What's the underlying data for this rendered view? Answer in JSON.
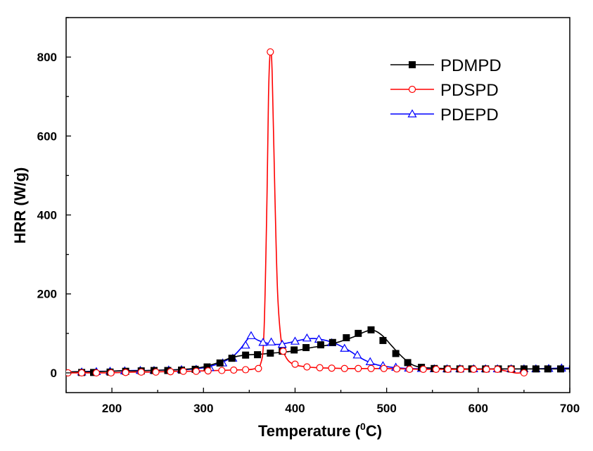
{
  "chart_data": {
    "type": "line",
    "title": "",
    "xlabel": "Temperature (",
    "xlabel_sup": "0",
    "xlabel_suffix": "C)",
    "ylabel": "HRR (W/g)",
    "xlim": [
      150,
      700
    ],
    "ylim": [
      -50,
      900
    ],
    "x_ticks": [
      200,
      300,
      400,
      500,
      600,
      700
    ],
    "y_ticks": [
      0,
      200,
      400,
      600,
      800
    ],
    "grid": false,
    "legend_position": "top-right",
    "series": [
      {
        "name": "PDMPD",
        "color": "#000000",
        "marker": "filled-square",
        "points": [
          [
            150,
            2
          ],
          [
            165,
            3
          ],
          [
            180,
            3
          ],
          [
            195,
            4
          ],
          [
            210,
            5
          ],
          [
            225,
            5
          ],
          [
            240,
            6
          ],
          [
            255,
            7
          ],
          [
            270,
            8
          ],
          [
            285,
            10
          ],
          [
            300,
            15
          ],
          [
            315,
            25
          ],
          [
            330,
            38
          ],
          [
            345,
            45
          ],
          [
            360,
            47
          ],
          [
            375,
            50
          ],
          [
            390,
            53
          ],
          [
            405,
            58
          ],
          [
            420,
            65
          ],
          [
            435,
            70
          ],
          [
            450,
            80
          ],
          [
            465,
            92
          ],
          [
            475,
            103
          ],
          [
            485,
            108
          ],
          [
            495,
            95
          ],
          [
            505,
            70
          ],
          [
            515,
            45
          ],
          [
            525,
            25
          ],
          [
            535,
            15
          ],
          [
            550,
            12
          ],
          [
            565,
            11
          ],
          [
            580,
            10
          ],
          [
            595,
            10
          ],
          [
            610,
            10
          ],
          [
            625,
            10
          ],
          [
            640,
            10
          ],
          [
            655,
            10
          ],
          [
            670,
            10
          ],
          [
            685,
            10
          ],
          [
            700,
            10
          ]
        ],
        "markers": [
          [
            167,
            1
          ],
          [
            180,
            1
          ],
          [
            198,
            2
          ],
          [
            215,
            4
          ],
          [
            232,
            5
          ],
          [
            246,
            6
          ],
          [
            261,
            6
          ],
          [
            276,
            7
          ],
          [
            291,
            9
          ],
          [
            304,
            15
          ],
          [
            318,
            25
          ],
          [
            331,
            37
          ],
          [
            346,
            45
          ],
          [
            359,
            46
          ],
          [
            373,
            50
          ],
          [
            386,
            55
          ],
          [
            399,
            58
          ],
          [
            412,
            64
          ],
          [
            428,
            71
          ],
          [
            441,
            77
          ],
          [
            456,
            89
          ],
          [
            469,
            100
          ],
          [
            483,
            109
          ],
          [
            496,
            82
          ],
          [
            510,
            49
          ],
          [
            523,
            26
          ],
          [
            538,
            14
          ],
          [
            552,
            11
          ],
          [
            566,
            10
          ],
          [
            580,
            10
          ],
          [
            593,
            10
          ],
          [
            608,
            10
          ],
          [
            622,
            10
          ],
          [
            636,
            10
          ],
          [
            650,
            10
          ],
          [
            663,
            10
          ],
          [
            676,
            10
          ],
          [
            690,
            10
          ],
          [
            703,
            10
          ]
        ]
      },
      {
        "name": "PDSPD",
        "color": "#ff0000",
        "marker": "open-circle",
        "points": [
          [
            150,
            0
          ],
          [
            165,
            0
          ],
          [
            180,
            0
          ],
          [
            195,
            0
          ],
          [
            210,
            1
          ],
          [
            225,
            2
          ],
          [
            240,
            2
          ],
          [
            255,
            3
          ],
          [
            270,
            4
          ],
          [
            285,
            4
          ],
          [
            300,
            5
          ],
          [
            315,
            6
          ],
          [
            330,
            7
          ],
          [
            345,
            8
          ],
          [
            355,
            10
          ],
          [
            362,
            20
          ],
          [
            366,
            100
          ],
          [
            369,
            400
          ],
          [
            371,
            700
          ],
          [
            373,
            815
          ],
          [
            375,
            760
          ],
          [
            378,
            450
          ],
          [
            381,
            200
          ],
          [
            385,
            80
          ],
          [
            390,
            40
          ],
          [
            398,
            22
          ],
          [
            410,
            16
          ],
          [
            425,
            13
          ],
          [
            440,
            12
          ],
          [
            455,
            11
          ],
          [
            470,
            11
          ],
          [
            485,
            11
          ],
          [
            500,
            11
          ],
          [
            520,
            10
          ],
          [
            540,
            9
          ],
          [
            560,
            9
          ],
          [
            580,
            9
          ],
          [
            600,
            9
          ],
          [
            620,
            9
          ],
          [
            640,
            0
          ],
          [
            650,
            1
          ]
        ],
        "markers": [
          [
            152,
            0
          ],
          [
            167,
            0
          ],
          [
            183,
            0
          ],
          [
            199,
            0
          ],
          [
            215,
            1
          ],
          [
            232,
            2
          ],
          [
            248,
            2
          ],
          [
            264,
            3
          ],
          [
            278,
            4
          ],
          [
            292,
            4
          ],
          [
            305,
            5
          ],
          [
            320,
            6
          ],
          [
            333,
            7
          ],
          [
            346,
            8
          ],
          [
            360,
            11
          ],
          [
            373,
            813
          ],
          [
            387,
            55
          ],
          [
            400,
            22
          ],
          [
            413,
            15
          ],
          [
            427,
            13
          ],
          [
            440,
            12
          ],
          [
            454,
            11
          ],
          [
            469,
            11
          ],
          [
            483,
            11
          ],
          [
            497,
            11
          ],
          [
            511,
            10
          ],
          [
            525,
            9
          ],
          [
            540,
            9
          ],
          [
            554,
            9
          ],
          [
            567,
            9
          ],
          [
            581,
            9
          ],
          [
            595,
            9
          ],
          [
            609,
            9
          ],
          [
            621,
            9
          ],
          [
            636,
            9
          ],
          [
            650,
            0
          ]
        ]
      },
      {
        "name": "PDEPD",
        "color": "#0000ff",
        "marker": "open-triangle",
        "points": [
          [
            150,
            2
          ],
          [
            165,
            3
          ],
          [
            180,
            4
          ],
          [
            195,
            4
          ],
          [
            210,
            5
          ],
          [
            225,
            6
          ],
          [
            240,
            6
          ],
          [
            255,
            7
          ],
          [
            270,
            8
          ],
          [
            285,
            9
          ],
          [
            300,
            13
          ],
          [
            315,
            22
          ],
          [
            330,
            38
          ],
          [
            340,
            60
          ],
          [
            348,
            85
          ],
          [
            352,
            92
          ],
          [
            360,
            82
          ],
          [
            370,
            75
          ],
          [
            380,
            72
          ],
          [
            390,
            75
          ],
          [
            400,
            80
          ],
          [
            410,
            85
          ],
          [
            420,
            87
          ],
          [
            430,
            84
          ],
          [
            440,
            78
          ],
          [
            450,
            68
          ],
          [
            460,
            55
          ],
          [
            470,
            40
          ],
          [
            480,
            28
          ],
          [
            490,
            20
          ],
          [
            500,
            16
          ],
          [
            510,
            13
          ],
          [
            525,
            11
          ],
          [
            540,
            10
          ],
          [
            555,
            10
          ],
          [
            570,
            10
          ],
          [
            585,
            10
          ],
          [
            600,
            10
          ],
          [
            615,
            10
          ],
          [
            630,
            10
          ],
          [
            645,
            10
          ],
          [
            660,
            10
          ],
          [
            675,
            11
          ],
          [
            690,
            12
          ],
          [
            700,
            12
          ]
        ],
        "markers": [
          [
            167,
            2
          ],
          [
            183,
            3
          ],
          [
            198,
            4
          ],
          [
            214,
            5
          ],
          [
            231,
            6
          ],
          [
            246,
            6
          ],
          [
            262,
            7
          ],
          [
            276,
            8
          ],
          [
            292,
            9
          ],
          [
            307,
            13
          ],
          [
            321,
            25
          ],
          [
            332,
            37
          ],
          [
            346,
            70
          ],
          [
            352,
            94
          ],
          [
            365,
            77
          ],
          [
            374,
            78
          ],
          [
            386,
            72
          ],
          [
            400,
            80
          ],
          [
            413,
            88
          ],
          [
            426,
            85
          ],
          [
            440,
            76
          ],
          [
            454,
            62
          ],
          [
            468,
            45
          ],
          [
            482,
            28
          ],
          [
            496,
            18
          ],
          [
            510,
            14
          ],
          [
            524,
            12
          ],
          [
            538,
            11
          ],
          [
            552,
            10
          ],
          [
            566,
            10
          ],
          [
            580,
            10
          ],
          [
            595,
            10
          ],
          [
            608,
            10
          ],
          [
            621,
            10
          ],
          [
            636,
            10
          ],
          [
            650,
            10
          ],
          [
            663,
            10
          ],
          [
            677,
            11
          ],
          [
            691,
            12
          ]
        ]
      }
    ]
  }
}
